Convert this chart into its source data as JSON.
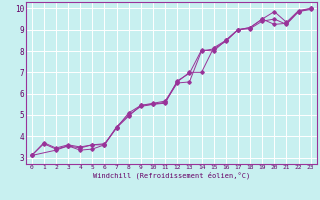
{
  "xlabel": "Windchill (Refroidissement éolien,°C)",
  "bg_color": "#c8f0f0",
  "line_color": "#993399",
  "xlim": [
    -0.5,
    23.5
  ],
  "ylim": [
    2.7,
    10.3
  ],
  "xticks": [
    0,
    1,
    2,
    3,
    4,
    5,
    6,
    7,
    8,
    9,
    10,
    11,
    12,
    13,
    14,
    15,
    16,
    17,
    18,
    19,
    20,
    21,
    22,
    23
  ],
  "yticks": [
    3,
    4,
    5,
    6,
    7,
    8,
    9,
    10
  ],
  "line1_x": [
    0,
    1,
    2,
    3,
    4,
    5,
    6,
    7,
    8,
    9,
    10,
    11,
    12,
    13,
    14,
    15,
    16,
    17,
    18,
    19,
    20,
    21,
    22,
    23
  ],
  "line1_y": [
    3.1,
    3.65,
    3.4,
    3.55,
    3.45,
    3.6,
    3.6,
    4.45,
    5.0,
    5.4,
    5.5,
    5.6,
    6.5,
    6.55,
    8.0,
    8.1,
    8.45,
    9.0,
    9.05,
    9.4,
    9.5,
    9.25,
    9.85,
    9.95
  ],
  "line2_x": [
    0,
    2,
    3,
    4,
    5,
    6,
    7,
    8,
    9,
    10,
    11,
    12,
    13,
    14,
    15,
    16,
    17,
    18,
    19,
    20,
    21,
    22,
    23
  ],
  "line2_y": [
    3.1,
    3.35,
    3.55,
    3.35,
    3.4,
    3.6,
    4.4,
    5.1,
    5.45,
    5.5,
    5.55,
    6.6,
    6.95,
    8.05,
    8.0,
    8.5,
    9.0,
    9.1,
    9.5,
    9.25,
    9.3,
    9.85,
    10.0
  ],
  "line3_x": [
    0,
    1,
    2,
    3,
    4,
    5,
    6,
    7,
    8,
    9,
    10,
    11,
    12,
    13,
    14,
    15,
    16,
    17,
    18,
    19,
    20,
    21,
    22,
    23
  ],
  "line3_y": [
    3.1,
    3.7,
    3.45,
    3.6,
    3.5,
    3.6,
    3.65,
    4.4,
    4.95,
    5.45,
    5.55,
    5.65,
    6.55,
    7.0,
    7.0,
    8.15,
    8.5,
    9.0,
    9.1,
    9.5,
    9.85,
    9.35,
    9.9,
    10.0
  ]
}
